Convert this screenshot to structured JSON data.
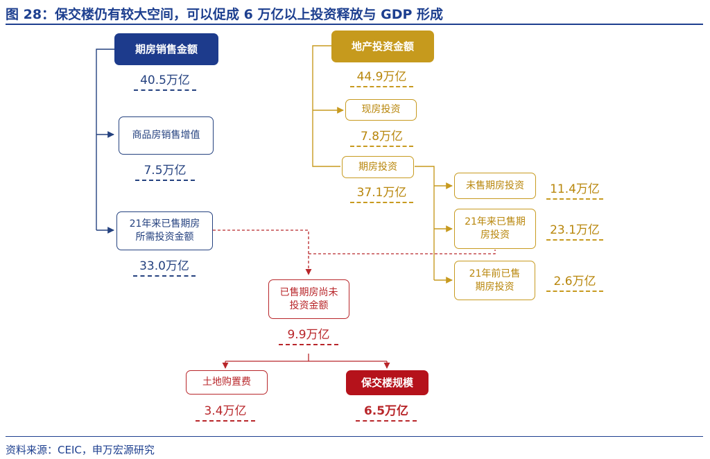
{
  "title": "图 28：保交楼仍有较大空间，可以促成 6 万亿以上投资释放与 GDP 形成",
  "source": "资料来源：CEIC，申万宏源研究",
  "colors": {
    "blue": "#1d3b8c",
    "gold": "#c69a1d",
    "red": "#b5121b"
  },
  "left": {
    "presale": {
      "label": "期房销售金额",
      "value": "40.5万亿"
    },
    "sales_added_value": {
      "label": "商品房销售增值",
      "value": "7.5万亿"
    },
    "required_investment": {
      "label_line1": "21年来已售期房",
      "label_line2": "所需投资金额",
      "value": "33.0万亿"
    }
  },
  "right": {
    "property_investment": {
      "label": "地产投资金额",
      "value": "44.9万亿"
    },
    "existing_investment": {
      "label": "现房投资",
      "value": "7.8万亿"
    },
    "presale_investment": {
      "label": "期房投资",
      "value": "37.1万亿"
    },
    "unsold": {
      "label": "未售期房投资",
      "value": "11.4万亿"
    },
    "sold_since_21": {
      "label_line1": "21年来已售期",
      "label_line2": "房投资",
      "value": "23.1万亿"
    },
    "sold_before_21": {
      "label_line1": "21年前已售",
      "label_line2": "期房投资",
      "value": "2.6万亿"
    }
  },
  "center": {
    "uninvested": {
      "label_line1": "已售期房尚未",
      "label_line2": "投资金额",
      "value": "9.9万亿"
    },
    "land": {
      "label": "土地购置费",
      "value": "3.4万亿"
    },
    "delivery": {
      "label": "保交楼规模",
      "value": "6.5万亿"
    }
  }
}
